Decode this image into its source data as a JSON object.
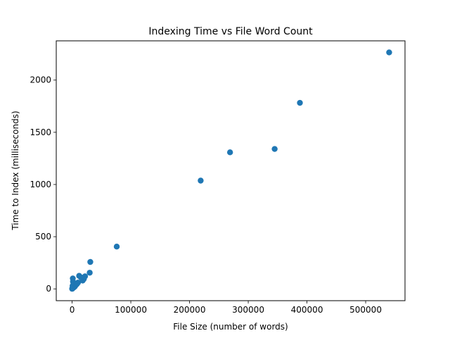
{
  "chart_data": {
    "type": "scatter",
    "title": "Indexing Time vs File Word Count",
    "xlabel": "File Size (number of words)",
    "ylabel": "Time to Index (milliseconds)",
    "xlim": [
      -27000,
      567000
    ],
    "ylim": [
      -113,
      2376
    ],
    "x_ticks": [
      0,
      100000,
      200000,
      300000,
      400000,
      500000
    ],
    "x_tick_labels": [
      "0",
      "100000",
      "200000",
      "300000",
      "400000",
      "500000"
    ],
    "y_ticks": [
      0,
      500,
      1000,
      1500,
      2000
    ],
    "y_tick_labels": [
      "0",
      "500",
      "1000",
      "1500",
      "2000"
    ],
    "grid": false,
    "marker_color": "#1f77b4",
    "series": [
      {
        "points": [
          {
            "x": 540000,
            "y": 2265
          },
          {
            "x": 388000,
            "y": 1782
          },
          {
            "x": 345000,
            "y": 1340
          },
          {
            "x": 269000,
            "y": 1308
          },
          {
            "x": 219000,
            "y": 1037
          },
          {
            "x": 76000,
            "y": 405
          },
          {
            "x": 31000,
            "y": 258
          },
          {
            "x": 30000,
            "y": 155
          },
          {
            "x": 22000,
            "y": 120
          },
          {
            "x": 20000,
            "y": 95
          },
          {
            "x": 18000,
            "y": 80
          },
          {
            "x": 15000,
            "y": 110
          },
          {
            "x": 12000,
            "y": 125
          },
          {
            "x": 10000,
            "y": 60
          },
          {
            "x": 8000,
            "y": 45
          },
          {
            "x": 6000,
            "y": 35
          },
          {
            "x": 5000,
            "y": 25
          },
          {
            "x": 4000,
            "y": 20
          },
          {
            "x": 3000,
            "y": 15
          },
          {
            "x": 2500,
            "y": 40
          },
          {
            "x": 2000,
            "y": 10
          },
          {
            "x": 1500,
            "y": 70
          },
          {
            "x": 1200,
            "y": 100
          },
          {
            "x": 1000,
            "y": 8
          },
          {
            "x": 800,
            "y": 30
          },
          {
            "x": 500,
            "y": 5
          },
          {
            "x": 300,
            "y": 3
          },
          {
            "x": 100,
            "y": 1
          }
        ]
      }
    ]
  }
}
